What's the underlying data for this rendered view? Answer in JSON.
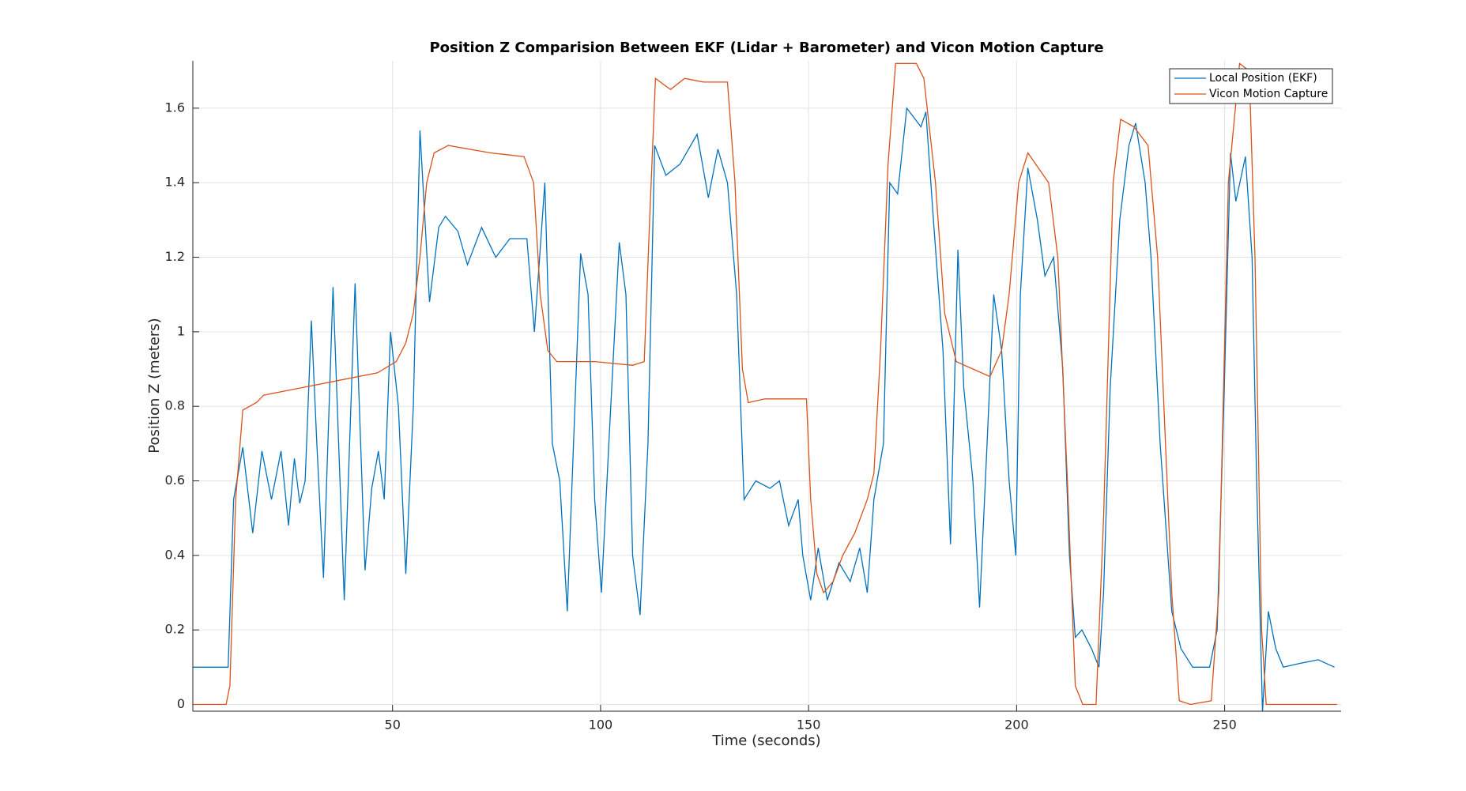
{
  "chart_data": {
    "type": "line",
    "title": "Position Z Comparision Between EKF (Lidar + Barometer) and Vicon Motion Capture",
    "x_label": "Time (seconds)",
    "y_label": "Position Z (meters)",
    "xlim": [
      2,
      278
    ],
    "ylim": [
      -0.018,
      1.727
    ],
    "xticks": [
      50,
      100,
      150,
      200,
      250
    ],
    "yticks": [
      0,
      0.2,
      0.4,
      0.6,
      0.8,
      1,
      1.2,
      1.4,
      1.6
    ],
    "grid": true,
    "legend": "northeast",
    "series": [
      {
        "name": "Local Position (EKF)",
        "color": "#0072bd",
        "x": [
          2,
          10.5,
          11.8,
          14,
          16.4,
          18.6,
          20.9,
          23.2,
          25,
          26.4,
          27.7,
          29,
          30.5,
          31.8,
          33.4,
          35.7,
          38.4,
          41,
          43.4,
          45,
          46.6,
          48,
          49.5,
          51.4,
          53.2,
          55,
          56.6,
          58.9,
          61.1,
          62.7,
          65.7,
          68,
          71.4,
          74.8,
          78.2,
          82.3,
          84.1,
          86.6,
          88.4,
          90.2,
          92,
          95.2,
          97,
          98.6,
          100.2,
          102,
          104.5,
          106.1,
          107.7,
          109.5,
          111.4,
          113,
          115.7,
          119.1,
          123.2,
          125.9,
          128.2,
          130.5,
          132.7,
          134.5,
          137.3,
          140.7,
          143,
          145.2,
          147.5,
          148.6,
          150.5,
          152.3,
          154.5,
          157.3,
          160,
          162.3,
          164.1,
          165.7,
          168,
          169.5,
          171.4,
          173.6,
          177,
          178.2,
          180,
          182.3,
          184.1,
          185.9,
          187.3,
          189.5,
          191.1,
          192.9,
          194.5,
          196.4,
          198.2,
          199.8,
          200.9,
          202.7,
          205,
          206.8,
          208.9,
          211.1,
          212.7,
          214.1,
          215.7,
          218,
          219.8,
          220.9,
          222.5,
          224.8,
          227,
          228.6,
          230.9,
          232.3,
          234.5,
          237.3,
          239.5,
          242.3,
          246.4,
          248.2,
          249.8,
          251.4,
          252.7,
          255,
          256.6,
          257.7,
          259.1,
          260.5,
          262.3,
          264.1,
          268,
          272.5,
          276.4
        ],
        "values": [
          0.1,
          0.1,
          0.55,
          0.69,
          0.46,
          0.68,
          0.55,
          0.68,
          0.48,
          0.66,
          0.54,
          0.6,
          1.03,
          0.7,
          0.34,
          1.12,
          0.28,
          1.13,
          0.36,
          0.58,
          0.68,
          0.55,
          1.0,
          0.8,
          0.35,
          0.8,
          1.54,
          1.08,
          1.28,
          1.31,
          1.27,
          1.18,
          1.28,
          1.2,
          1.25,
          1.25,
          1.0,
          1.4,
          0.7,
          0.6,
          0.25,
          1.21,
          1.1,
          0.55,
          0.3,
          0.7,
          1.24,
          1.1,
          0.4,
          0.24,
          0.7,
          1.5,
          1.42,
          1.45,
          1.53,
          1.36,
          1.49,
          1.4,
          1.1,
          0.55,
          0.6,
          0.58,
          0.6,
          0.48,
          0.55,
          0.4,
          0.28,
          0.42,
          0.28,
          0.38,
          0.33,
          0.42,
          0.3,
          0.55,
          0.7,
          1.4,
          1.37,
          1.6,
          1.55,
          1.59,
          1.3,
          0.95,
          0.43,
          1.22,
          0.85,
          0.6,
          0.26,
          0.7,
          1.1,
          0.95,
          0.6,
          0.4,
          1.1,
          1.44,
          1.3,
          1.15,
          1.2,
          0.9,
          0.4,
          0.18,
          0.2,
          0.15,
          0.1,
          0.3,
          0.85,
          1.3,
          1.5,
          1.56,
          1.4,
          1.2,
          0.7,
          0.25,
          0.15,
          0.1,
          0.1,
          0.2,
          0.8,
          1.48,
          1.35,
          1.47,
          1.2,
          0.6,
          -0.02,
          0.25,
          0.15,
          0.1,
          0.11,
          0.12,
          0.1
        ]
      },
      {
        "name": "Vicon Motion Capture",
        "color": "#d95319",
        "x": [
          1.8,
          10,
          10.9,
          12.3,
          14,
          17.3,
          19,
          28.2,
          37.3,
          46.4,
          50.9,
          53.2,
          55,
          56.6,
          58.2,
          60,
          63.4,
          73.6,
          81.6,
          83.9,
          85.5,
          87.3,
          89.5,
          98.6,
          107.7,
          110.5,
          111.8,
          113.2,
          116.8,
          120.2,
          124.8,
          130.5,
          132.3,
          134.1,
          135.5,
          139.5,
          149.5,
          150.5,
          152,
          153.6,
          155.9,
          158.2,
          161.1,
          164.1,
          165.7,
          167.3,
          169.1,
          170.9,
          175.9,
          177.7,
          180.5,
          182.7,
          185.5,
          189.5,
          193.6,
          196.4,
          198.2,
          200.5,
          202.7,
          207.7,
          209.9,
          212.2,
          214.1,
          215.9,
          219.1,
          220.9,
          223.2,
          225,
          228.2,
          231.6,
          233.9,
          237.3,
          239.1,
          241.8,
          246.8,
          248.6,
          250.9,
          253.6,
          255.9,
          257.3,
          258.9,
          260,
          277
        ],
        "values": [
          0,
          0,
          0.05,
          0.55,
          0.79,
          0.81,
          0.83,
          0.85,
          0.87,
          0.89,
          0.92,
          0.97,
          1.05,
          1.2,
          1.4,
          1.48,
          1.5,
          1.48,
          1.47,
          1.4,
          1.1,
          0.95,
          0.92,
          0.92,
          0.91,
          0.92,
          1.3,
          1.68,
          1.65,
          1.68,
          1.67,
          1.67,
          1.4,
          0.9,
          0.81,
          0.82,
          0.82,
          0.55,
          0.35,
          0.3,
          0.33,
          0.4,
          0.46,
          0.55,
          0.62,
          0.95,
          1.45,
          1.72,
          1.72,
          1.68,
          1.4,
          1.05,
          0.92,
          0.9,
          0.88,
          0.95,
          1.1,
          1.4,
          1.48,
          1.4,
          1.2,
          0.6,
          0.05,
          0,
          0,
          0.5,
          1.4,
          1.57,
          1.55,
          1.5,
          1.2,
          0.3,
          0.01,
          0,
          0.01,
          0.3,
          1.4,
          1.72,
          1.7,
          1.2,
          0.2,
          0,
          0
        ]
      }
    ]
  }
}
